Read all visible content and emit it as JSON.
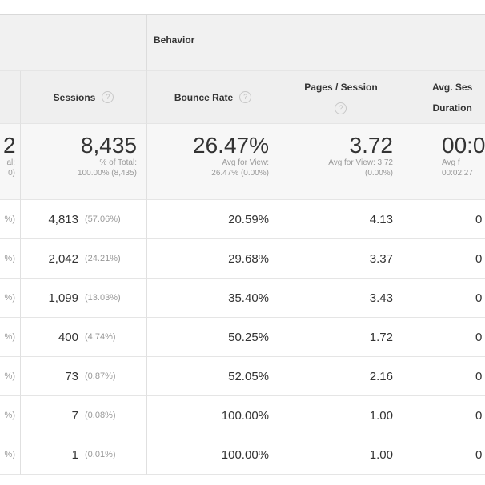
{
  "group_header": {
    "behavior": "Behavior"
  },
  "columns": {
    "sessions": "Sessions",
    "bounce_rate": "Bounce Rate",
    "pages_session": "Pages / Session",
    "avg_session_1": "Avg. Ses",
    "avg_session_2": "Duration"
  },
  "help_glyph": "?",
  "totals": {
    "prev_big": "2",
    "prev_sub1": "al:",
    "prev_sub2": "0)",
    "sessions_big": "8,435",
    "sessions_sub1": "% of Total:",
    "sessions_sub2": "100.00% (8,435)",
    "bounce_big": "26.47%",
    "bounce_sub1": "Avg for View:",
    "bounce_sub2": "26.47% (0.00%)",
    "pages_big": "3.72",
    "pages_sub1": "Avg for View: 3.72",
    "pages_sub2": "(0.00%)",
    "duration_big": "00:0",
    "duration_sub1": "Avg f",
    "duration_sub2": "00:02:27"
  },
  "rows": [
    {
      "prev": "%)",
      "sessions": "4,813",
      "sessions_pct": "(57.06%)",
      "bounce": "20.59%",
      "pages": "4.13",
      "duration": "0"
    },
    {
      "prev": "%)",
      "sessions": "2,042",
      "sessions_pct": "(24.21%)",
      "bounce": "29.68%",
      "pages": "3.37",
      "duration": "0"
    },
    {
      "prev": "%)",
      "sessions": "1,099",
      "sessions_pct": "(13.03%)",
      "bounce": "35.40%",
      "pages": "3.43",
      "duration": "0"
    },
    {
      "prev": "%)",
      "sessions": "400",
      "sessions_pct": "(4.74%)",
      "bounce": "50.25%",
      "pages": "1.72",
      "duration": "0"
    },
    {
      "prev": "%)",
      "sessions": "73",
      "sessions_pct": "(0.87%)",
      "bounce": "52.05%",
      "pages": "2.16",
      "duration": "0"
    },
    {
      "prev": "%)",
      "sessions": "7",
      "sessions_pct": "(0.08%)",
      "bounce": "100.00%",
      "pages": "1.00",
      "duration": "0"
    },
    {
      "prev": "%)",
      "sessions": "1",
      "sessions_pct": "(0.01%)",
      "bounce": "100.00%",
      "pages": "1.00",
      "duration": "0"
    }
  ]
}
